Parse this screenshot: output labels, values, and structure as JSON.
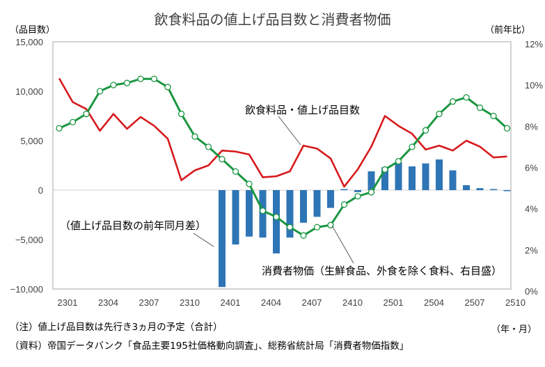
{
  "chart_data": {
    "type": "bar+line",
    "title": "飲食料品の値上げ品目数と消費者物価",
    "left_axis_label": "（品目数）",
    "right_axis_label": "（前年比）",
    "x_unit_label": "（年・月）",
    "left_ylim": [
      -10000,
      15000
    ],
    "left_ticks": [
      "15,000",
      "10,000",
      "5,000",
      "0",
      "−5,000",
      "−10,000"
    ],
    "left_tick_values": [
      15000,
      10000,
      5000,
      0,
      -5000,
      -10000
    ],
    "right_ylim": [
      0,
      12
    ],
    "right_ticks": [
      "12%",
      "10%",
      "8%",
      "6%",
      "4%",
      "2%",
      "0%"
    ],
    "right_tick_values": [
      12,
      10,
      8,
      6,
      4,
      2,
      0
    ],
    "x": [
      "2301",
      "2302",
      "2303",
      "2304",
      "2305",
      "2306",
      "2307",
      "2308",
      "2309",
      "2310",
      "2311",
      "2312",
      "2401",
      "2402",
      "2403",
      "2404",
      "2405",
      "2406",
      "2407",
      "2408",
      "2409",
      "2410",
      "2411",
      "2412",
      "2501",
      "2502",
      "2503",
      "2504",
      "2505",
      "2506",
      "2507",
      "2508",
      "2509",
      "2510"
    ],
    "x_tick_labels": [
      "2301",
      "2304",
      "2307",
      "2310",
      "2401",
      "2404",
      "2407",
      "2410",
      "2501",
      "2504",
      "2507",
      "2510"
    ],
    "grid": false,
    "series": [
      {
        "name": "飲食料品・値上げ品目数",
        "type": "line",
        "axis": "left",
        "color": "#d7191c",
        "values": [
          11300,
          8900,
          8200,
          6000,
          7700,
          6200,
          7400,
          6500,
          5200,
          1000,
          2000,
          2500,
          4000,
          3900,
          3600,
          1300,
          1400,
          1900,
          4500,
          4200,
          3200,
          350,
          2100,
          4400,
          7500,
          6500,
          5700,
          4100,
          4500,
          4000,
          5000,
          4400,
          3300,
          3400
        ]
      },
      {
        "name": "（値上げ品目数の前年同月差）",
        "type": "bar",
        "axis": "left",
        "color": "#2e75b6",
        "values": [
          null,
          null,
          null,
          null,
          null,
          null,
          null,
          null,
          null,
          null,
          null,
          null,
          -9800,
          -5500,
          -4700,
          -4800,
          -6400,
          -4800,
          -3300,
          -2700,
          -1800,
          100,
          -200,
          1900,
          2300,
          2800,
          2400,
          2700,
          3100,
          2000,
          500,
          200,
          50,
          -50
        ]
      },
      {
        "name": "消費者物価（生鮮食品、外食を除く食料、右目盛）",
        "type": "line",
        "axis": "right",
        "color": "#1a9641",
        "marker": "open-circle",
        "values": [
          7.8,
          8.1,
          8.5,
          9.6,
          9.9,
          10.0,
          10.2,
          10.2,
          9.8,
          8.5,
          7.4,
          6.9,
          6.3,
          5.7,
          5.1,
          3.8,
          3.5,
          3.0,
          2.6,
          3.0,
          3.1,
          4.1,
          4.5,
          4.7,
          5.8,
          6.2,
          6.9,
          7.7,
          8.5,
          9.1,
          9.3,
          8.8,
          8.4,
          7.8
        ]
      }
    ],
    "annotations": {
      "line_label": "飲食料品・値上げ品目数",
      "bar_label": "（値上げ品目数の前年同月差）",
      "cpi_label_1": "消費者物価（生鮮食品、外食を除く食料、右目盛）"
    },
    "legend": "none"
  },
  "notes": {
    "note1": "（注）値上げ品目数は先行き3ヵ月の予定（合計）",
    "note2": "（資料）帝国データバンク「食品主要195社価格動向調査」、総務省統計局「消費者物価指数」"
  }
}
